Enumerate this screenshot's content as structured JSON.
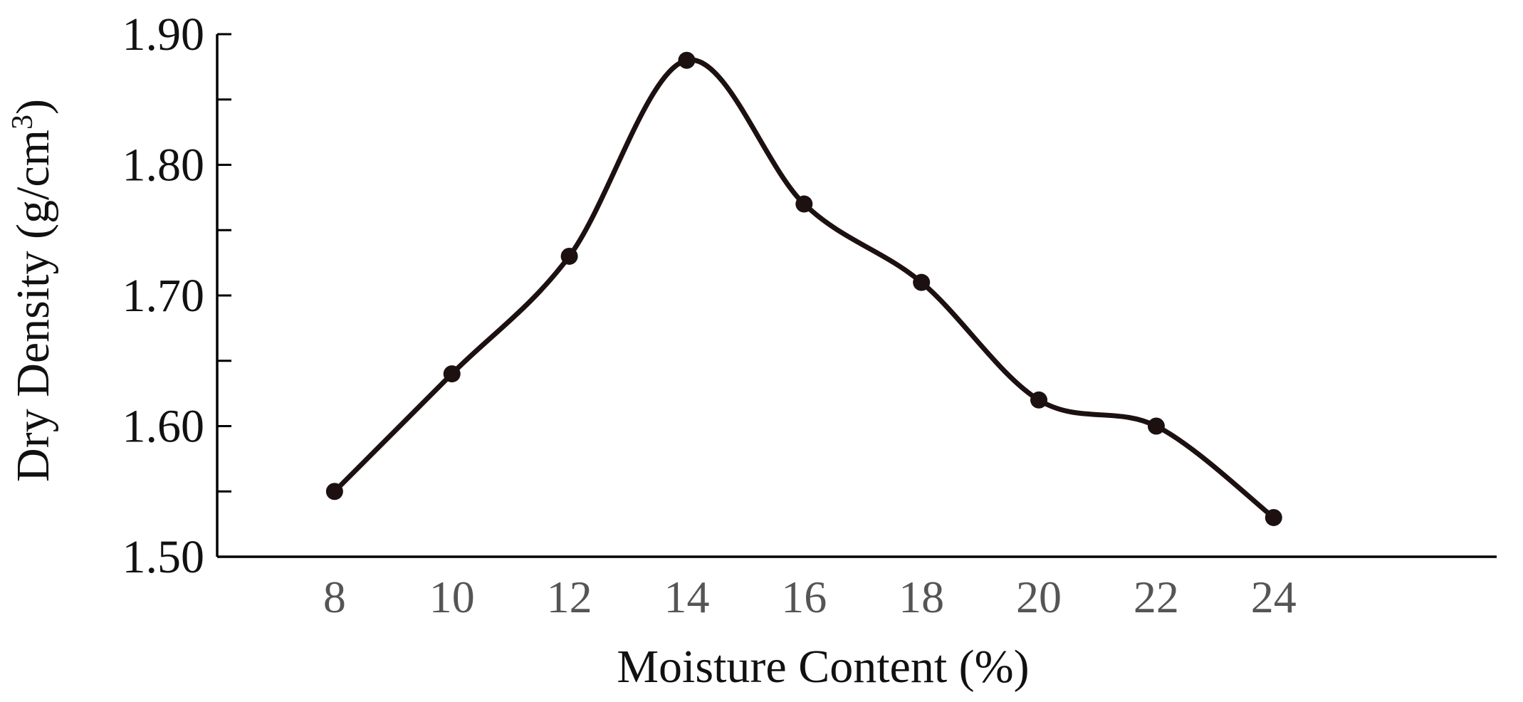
{
  "chart_data": {
    "type": "line",
    "xlabel": "Moisture Content (%)",
    "ylabel": "Dry Density (g/cm³)",
    "ylabel_main": "Dry Density (g/cm",
    "ylabel_sup": "3",
    "ylabel_close": ")",
    "xlim": [
      6.0,
      27.8
    ],
    "ylim": [
      1.5,
      1.9
    ],
    "x_ticks": [
      "8",
      "10",
      "12",
      "14",
      "16",
      "18",
      "20",
      "22",
      "24"
    ],
    "y_ticks": [
      "1.50",
      "1.60",
      "1.70",
      "1.80",
      "1.90"
    ],
    "y_minor_ticks": [
      1.55,
      1.65,
      1.75,
      1.85
    ],
    "grid": false,
    "series": [
      {
        "x": [
          8,
          10,
          12,
          14,
          16,
          18,
          20,
          22,
          24
        ],
        "y": [
          1.55,
          1.64,
          1.73,
          1.88,
          1.77,
          1.71,
          1.62,
          1.6,
          1.53
        ]
      }
    ],
    "colors": {
      "line": "#1c1010",
      "axis": "#000000",
      "x_tick_text": "#555555"
    }
  }
}
